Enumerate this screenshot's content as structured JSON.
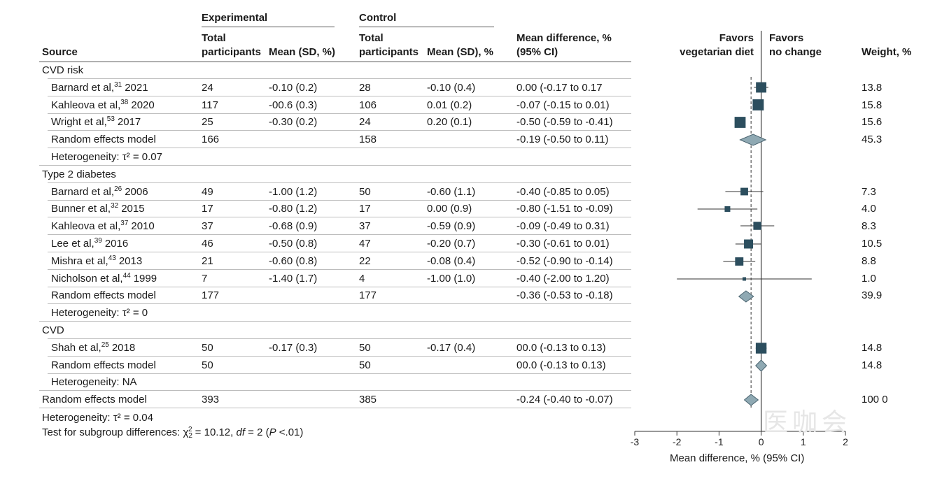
{
  "headers": {
    "source": "Source",
    "experimental": "Experimental",
    "control": "Control",
    "total1": "Total",
    "total2": "participants",
    "mean_exp": "Mean (SD, %)",
    "mean_ctl": "Mean (SD), %",
    "md1": "Mean difference, %",
    "md2": "(95% CI)",
    "favors_left1": "Favors",
    "favors_left2": "vegetarian diet",
    "favors_right1": "Favors",
    "favors_right2": "no change",
    "weight": "Weight, %"
  },
  "groups": [
    {
      "name": "CVD risk",
      "studies": [
        {
          "author": "Barnard et al,",
          "ref": "31",
          "year": "2021",
          "exp_n": "24",
          "exp_mean": "-0.10 (0.2)",
          "ctl_n": "28",
          "ctl_mean": "-0.10 (0.4)",
          "md_text": "0.00 (-0.17 to 0.17",
          "weight": "13.8"
        },
        {
          "author": "Kahleova et al,",
          "ref": "38",
          "year": "2020",
          "exp_n": "117",
          "exp_mean": "-00.6 (0.3)",
          "ctl_n": "106",
          "ctl_mean": "0.01 (0.2)",
          "md_text": "-0.07 (-0.15 to 0.01)",
          "weight": "15.8"
        },
        {
          "author": "Wright et al,",
          "ref": "53",
          "year": "2017",
          "exp_n": "25",
          "exp_mean": "-0.30 (0.2)",
          "ctl_n": "24",
          "ctl_mean": "0.20 (0.1)",
          "md_text": "-0.50 (-0.59 to -0.41)",
          "weight": "15.6"
        }
      ],
      "model": {
        "label": "Random effects model",
        "exp_n": "166",
        "ctl_n": "158",
        "md_text": "-0.19 (-0.50 to 0.11)",
        "weight": "45.3"
      },
      "heterogeneity": "Heterogeneity: τ² = 0.07"
    },
    {
      "name": "Type 2 diabetes",
      "studies": [
        {
          "author": "Barnard et al,",
          "ref": "26",
          "year": "2006",
          "exp_n": "49",
          "exp_mean": "-1.00 (1.2)",
          "ctl_n": "50",
          "ctl_mean": "-0.60 (1.1)",
          "md_text": "-0.40 (-0.85 to 0.05)",
          "weight": "7.3"
        },
        {
          "author": "Bunner et al,",
          "ref": "32",
          "year": "2015",
          "exp_n": "17",
          "exp_mean": "-0.80 (1.2)",
          "ctl_n": "17",
          "ctl_mean": "0.00 (0.9)",
          "md_text": "-0.80 (-1.51 to -0.09)",
          "weight": "4.0"
        },
        {
          "author": "Kahleova et al,",
          "ref": "37",
          "year": "2010",
          "exp_n": "37",
          "exp_mean": "-0.68 (0.9)",
          "ctl_n": "37",
          "ctl_mean": "-0.59 (0.9)",
          "md_text": "-0.09 (-0.49 to 0.31)",
          "weight": "8.3"
        },
        {
          "author": "Lee et al,",
          "ref": "39",
          "year": "2016",
          "exp_n": "46",
          "exp_mean": "-0.50 (0.8)",
          "ctl_n": "47",
          "ctl_mean": "-0.20 (0.7)",
          "md_text": "-0.30 (-0.61 to 0.01)",
          "weight": "10.5"
        },
        {
          "author": "Mishra et al,",
          "ref": "43",
          "year": "2013",
          "exp_n": "21",
          "exp_mean": "-0.60 (0.8)",
          "ctl_n": "22",
          "ctl_mean": "-0.08 (0.4)",
          "md_text": "-0.52 (-0.90 to -0.14)",
          "weight": "8.8"
        },
        {
          "author": "Nicholson et al,",
          "ref": "44",
          "year": "1999",
          "exp_n": "7",
          "exp_mean": "-1.40 (1.7)",
          "ctl_n": "4",
          "ctl_mean": "-1.00 (1.0)",
          "md_text": "-0.40 (-2.00 to 1.20)",
          "weight": "1.0"
        }
      ],
      "model": {
        "label": "Random effects model",
        "exp_n": "177",
        "ctl_n": "177",
        "md_text": "-0.36 (-0.53 to -0.18)",
        "weight": "39.9"
      },
      "heterogeneity": "Heterogeneity: τ² = 0"
    },
    {
      "name": "CVD",
      "studies": [
        {
          "author": "Shah et al,",
          "ref": "25",
          "year": "2018",
          "exp_n": "50",
          "exp_mean": "-0.17 (0.3)",
          "ctl_n": "50",
          "ctl_mean": "-0.17 (0.4)",
          "md_text": "00.0 (-0.13 to 0.13)",
          "weight": "14.8"
        }
      ],
      "model": {
        "label": "Random effects model",
        "exp_n": "50",
        "ctl_n": "50",
        "md_text": "00.0 (-0.13 to 0.13)",
        "weight": "14.8"
      },
      "heterogeneity": "Heterogeneity: NA"
    }
  ],
  "overall": {
    "label": "Random effects model",
    "exp_n": "393",
    "ctl_n": "385",
    "md_text": "-0.24 (-0.40 to -0.07)",
    "weight": "100 0"
  },
  "footer": {
    "heterogeneity": "Heterogeneity: τ² = 0.04",
    "test_prefix": "Test for subgroup differences: χ",
    "test_sub": "2",
    "test_sup": "2",
    "test_eq": " = 10.12, ",
    "test_df": "df",
    "test_df_val": " = 2 (",
    "test_p": "P",
    "test_p_val": " <.01)"
  },
  "watermark": "医咖会",
  "chart_data": {
    "type": "forest",
    "xlabel": "Mean difference, % (95% CI)",
    "xlim": [
      -3,
      2
    ],
    "xticks": [
      "-3",
      "-2",
      "-1",
      "0",
      "1",
      "2"
    ],
    "null_line": 0,
    "overall_line": -0.24,
    "colors": {
      "square": "#2c4e5e",
      "diamond": "#8fa9b3",
      "diamond_stroke": "#4a6470",
      "line": "#333333"
    },
    "points": [
      {
        "est": 0.0,
        "lo": -0.17,
        "hi": 0.17,
        "weight": 13.8,
        "shape": "square"
      },
      {
        "est": -0.07,
        "lo": -0.15,
        "hi": 0.01,
        "weight": 15.8,
        "shape": "square"
      },
      {
        "est": -0.5,
        "lo": -0.59,
        "hi": -0.41,
        "weight": 15.6,
        "shape": "square"
      },
      {
        "est": -0.19,
        "lo": -0.5,
        "hi": 0.11,
        "weight": 45.3,
        "shape": "diamond"
      },
      {
        "est": -0.4,
        "lo": -0.85,
        "hi": 0.05,
        "weight": 7.3,
        "shape": "square"
      },
      {
        "est": -0.8,
        "lo": -1.51,
        "hi": -0.09,
        "weight": 4.0,
        "shape": "square"
      },
      {
        "est": -0.09,
        "lo": -0.49,
        "hi": 0.31,
        "weight": 8.3,
        "shape": "square"
      },
      {
        "est": -0.3,
        "lo": -0.61,
        "hi": 0.01,
        "weight": 10.5,
        "shape": "square"
      },
      {
        "est": -0.52,
        "lo": -0.9,
        "hi": -0.14,
        "weight": 8.8,
        "shape": "square"
      },
      {
        "est": -0.4,
        "lo": -2.0,
        "hi": 1.2,
        "weight": 1.0,
        "shape": "square"
      },
      {
        "est": -0.36,
        "lo": -0.53,
        "hi": -0.18,
        "weight": 39.9,
        "shape": "diamond"
      },
      {
        "est": 0.0,
        "lo": -0.13,
        "hi": 0.13,
        "weight": 14.8,
        "shape": "square"
      },
      {
        "est": 0.0,
        "lo": -0.13,
        "hi": 0.13,
        "weight": 14.8,
        "shape": "diamond"
      },
      {
        "est": -0.24,
        "lo": -0.4,
        "hi": -0.07,
        "weight": 100.0,
        "shape": "diamond"
      }
    ]
  }
}
